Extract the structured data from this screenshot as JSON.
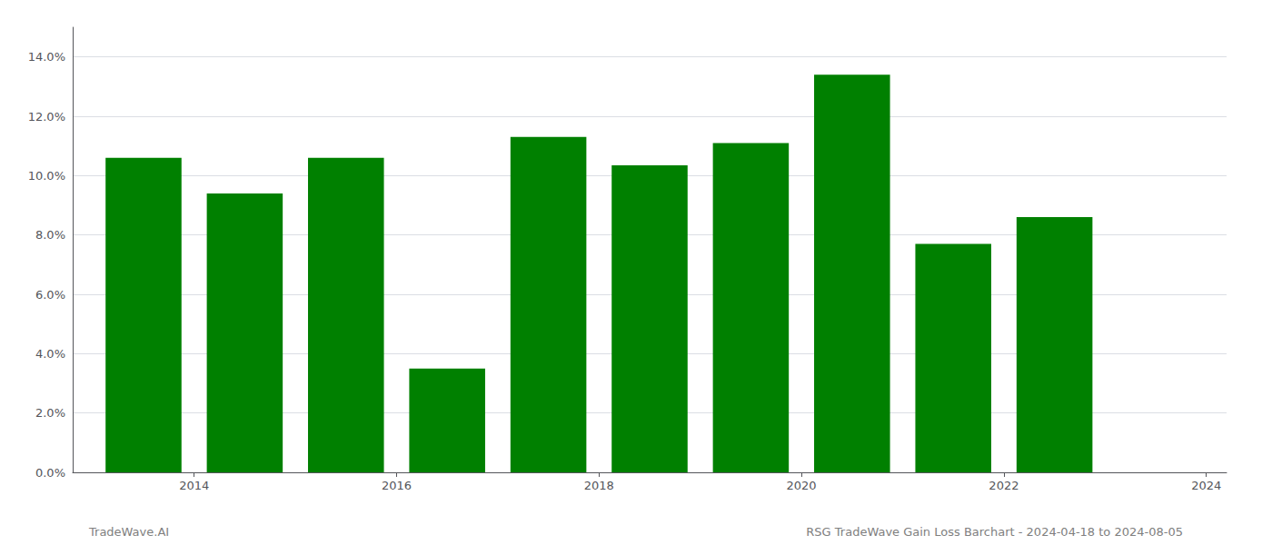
{
  "chart_data": {
    "type": "bar",
    "x": [
      2013.5,
      2014.5,
      2015.5,
      2016.5,
      2017.5,
      2018.5,
      2019.5,
      2020.5,
      2021.5,
      2022.5
    ],
    "values": [
      0.106,
      0.094,
      0.106,
      0.035,
      0.113,
      0.1035,
      0.111,
      0.134,
      0.077,
      0.086
    ],
    "color": "#008000",
    "xlim": [
      2012.8,
      2024.2
    ],
    "xticks": [
      2014,
      2016,
      2018,
      2020,
      2022,
      2024
    ],
    "ylim": [
      0,
      0.15
    ],
    "yticks": [
      {
        "value": 0.0,
        "label": "0.0%"
      },
      {
        "value": 0.02,
        "label": "2.0%"
      },
      {
        "value": 0.04,
        "label": "4.0%"
      },
      {
        "value": 0.06,
        "label": "6.0%"
      },
      {
        "value": 0.08,
        "label": "8.0%"
      },
      {
        "value": 0.1,
        "label": "10.0%"
      },
      {
        "value": 0.12,
        "label": "12.0%"
      },
      {
        "value": 0.14,
        "label": "14.0%"
      }
    ],
    "grid": true,
    "annotations": [
      "TradeWave.AI",
      "RSG TradeWave Gain Loss Barchart - 2024-04-18 to 2024-08-05"
    ]
  }
}
